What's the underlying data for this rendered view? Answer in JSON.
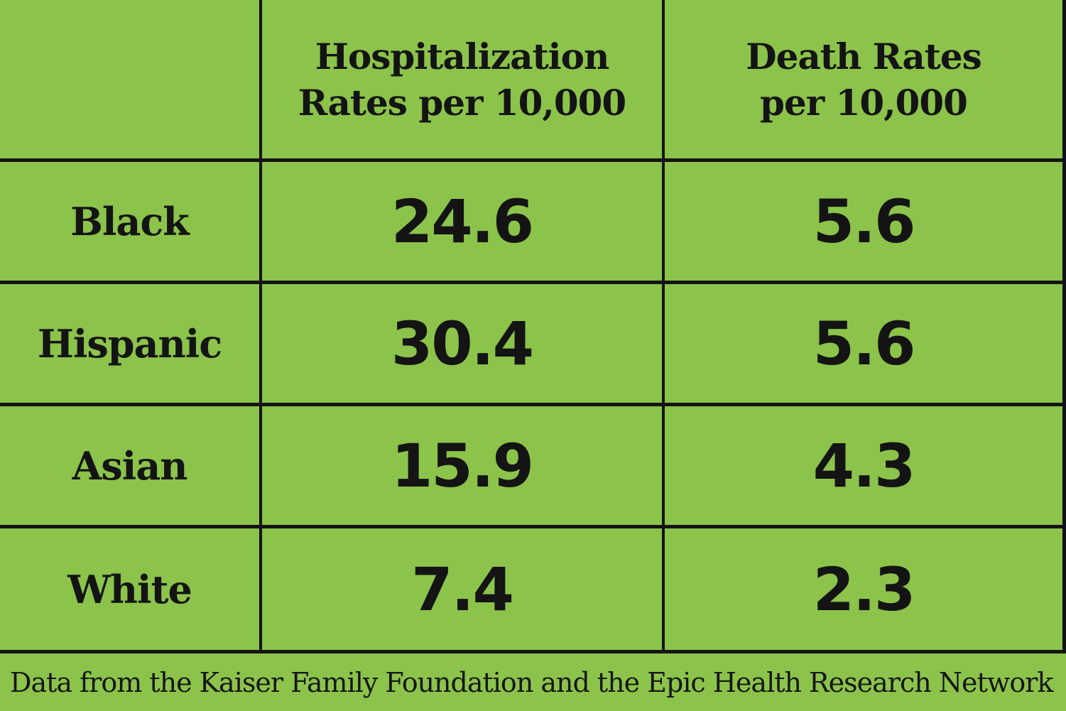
{
  "colors": {
    "background_green": "#8cc34b",
    "border_black": "#131313",
    "text_black": "#141414"
  },
  "table": {
    "headers": {
      "race": "",
      "hospitalization": "Hospitalization\nRates per 10,000",
      "death": "Death Rates\nper 10,000"
    },
    "rows": [
      {
        "label": "Black",
        "hospitalization": "24.6",
        "death": "5.6"
      },
      {
        "label": "Hispanic",
        "hospitalization": "30.4",
        "death": "5.6"
      },
      {
        "label": "Asian",
        "hospitalization": "15.9",
        "death": "4.3"
      },
      {
        "label": "White",
        "hospitalization": "7.4",
        "death": "2.3"
      }
    ]
  },
  "footer": {
    "source": "Data from the Kaiser Family Foundation and the Epic Health Research Network"
  },
  "chart_data": {
    "type": "table",
    "columns": [
      "",
      "Hospitalization Rates per 10,000",
      "Death Rates per 10,000"
    ],
    "categories": [
      "Black",
      "Hispanic",
      "Asian",
      "White"
    ],
    "series": [
      {
        "name": "Hospitalization Rates per 10,000",
        "values": [
          24.6,
          30.4,
          15.9,
          7.4
        ]
      },
      {
        "name": "Death Rates per 10,000",
        "values": [
          5.6,
          5.6,
          4.3,
          2.3
        ]
      }
    ],
    "source": "Data from the Kaiser Family Foundation and the Epic Health Research Network",
    "layout": "grid table, black rule borders, green background, no left/top outer border"
  }
}
